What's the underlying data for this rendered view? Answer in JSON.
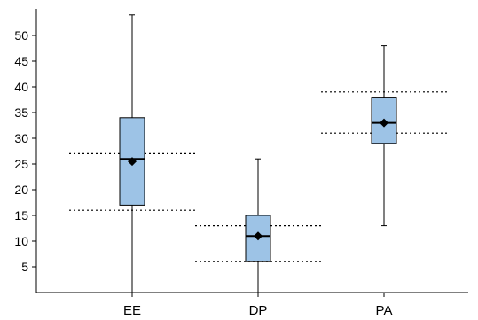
{
  "chart_data": {
    "type": "boxplot",
    "categories": [
      "EE",
      "DP",
      "PA"
    ],
    "ylim": [
      0,
      55
    ],
    "yticks": [
      5,
      10,
      15,
      20,
      25,
      30,
      35,
      40,
      45,
      50
    ],
    "grid": false,
    "boxes": [
      {
        "category": "EE",
        "min": 0,
        "q1": 17,
        "median": 26,
        "q3": 34,
        "max": 54,
        "mean": 25.5,
        "ref_low": 16,
        "ref_high": 27
      },
      {
        "category": "DP",
        "min": 0,
        "q1": 6,
        "median": 11,
        "q3": 15,
        "max": 26,
        "mean": 11,
        "ref_low": 6,
        "ref_high": 13
      },
      {
        "category": "PA",
        "min": 13,
        "q1": 29,
        "median": 33,
        "q3": 38,
        "max": 48,
        "mean": 33,
        "ref_low": 31,
        "ref_high": 39
      }
    ]
  },
  "colors": {
    "box_fill": "#9dc3e6",
    "box_stroke": "#000000",
    "axis": "#000000",
    "reference_line": "#000000"
  }
}
